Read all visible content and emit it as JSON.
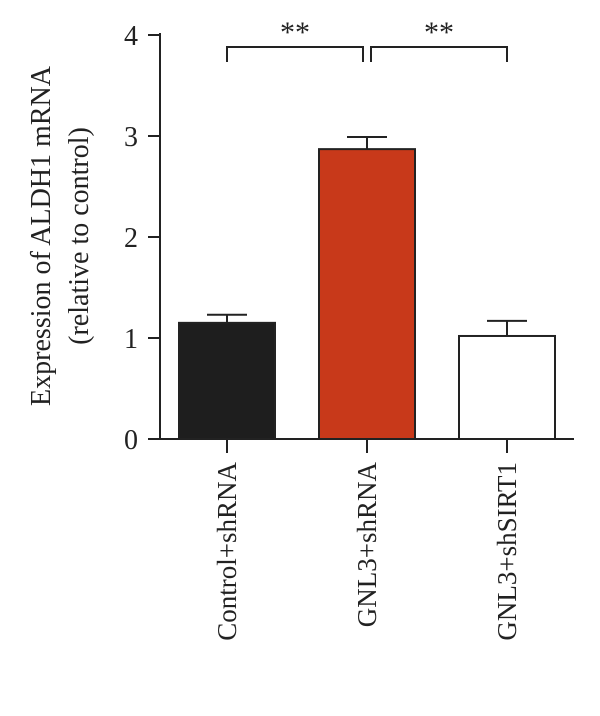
{
  "chart_data": {
    "type": "bar",
    "title": "",
    "xlabel": "",
    "ylabel_lines": [
      "Expression of ALDH1 mRNA",
      "(relative to control)"
    ],
    "ylim": [
      0,
      4
    ],
    "yticks": [
      "0",
      "1",
      "2",
      "3",
      "4"
    ],
    "grid": false,
    "categories": [
      "Control+shRNA",
      "GNL3+shRNA",
      "GNL3+shSIRT1"
    ],
    "values": [
      1.15,
      2.87,
      1.02
    ],
    "errors": [
      0.08,
      0.12,
      0.15
    ],
    "bar_colors": [
      "#1e1e1e",
      "#c8391a",
      "#ffffff"
    ],
    "bar_stroke": "#222222",
    "significance": [
      {
        "from": 0,
        "to": 1,
        "label": "**"
      },
      {
        "from": 1,
        "to": 2,
        "label": "**"
      }
    ]
  }
}
